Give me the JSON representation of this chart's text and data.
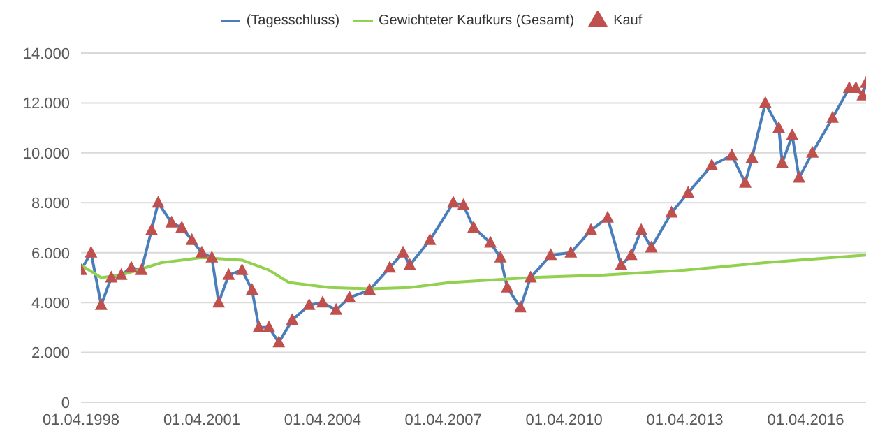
{
  "chart_data": {
    "type": "line",
    "legend": "top",
    "grid": "y",
    "xlim": [
      "1998-04-01",
      "2017-10-01"
    ],
    "xticks": [
      {
        "value": "1998-04-01",
        "label": "01.04.1998"
      },
      {
        "value": "2001-04-01",
        "label": "01.04.2001"
      },
      {
        "value": "2004-04-01",
        "label": "01.04.2004"
      },
      {
        "value": "2007-04-01",
        "label": "01.04.2007"
      },
      {
        "value": "2010-04-01",
        "label": "01.04.2010"
      },
      {
        "value": "2013-04-01",
        "label": "01.04.2013"
      },
      {
        "value": "2016-04-01",
        "label": "01.04.2016"
      }
    ],
    "ylim": [
      0,
      14000
    ],
    "yticks": [
      0,
      {
        "value": 2000,
        "label": "2.000"
      },
      {
        "value": 4000,
        "label": "4.000"
      },
      {
        "value": 6000,
        "label": "6.000"
      },
      {
        "value": 8000,
        "label": "8.000"
      },
      {
        "value": 10000,
        "label": "10.000"
      },
      {
        "value": 12000,
        "label": "12.000"
      },
      {
        "value": 14000,
        "label": "14.000"
      }
    ],
    "series": [
      {
        "name": "(Tagesschluss)",
        "marker": "none",
        "color": "#4a7ebb",
        "x": [
          "1998-04",
          "1998-07",
          "1998-10",
          "1999-01",
          "1999-04",
          "1999-07",
          "1999-10",
          "2000-01",
          "2000-03",
          "2000-07",
          "2000-10",
          "2001-01",
          "2001-04",
          "2001-07",
          "2001-09",
          "2001-12",
          "2002-04",
          "2002-07",
          "2002-09",
          "2002-12",
          "2003-03",
          "2003-07",
          "2003-12",
          "2004-04",
          "2004-08",
          "2004-12",
          "2005-06",
          "2005-12",
          "2006-04",
          "2006-06",
          "2006-12",
          "2007-07",
          "2007-10",
          "2008-01",
          "2008-06",
          "2008-09",
          "2008-11",
          "2009-03",
          "2009-06",
          "2009-12",
          "2010-06",
          "2010-12",
          "2011-05",
          "2011-09",
          "2011-12",
          "2012-03",
          "2012-06",
          "2012-12",
          "2013-05",
          "2013-12",
          "2014-06",
          "2014-10",
          "2014-12",
          "2015-04",
          "2015-08",
          "2015-09",
          "2015-12",
          "2016-02",
          "2016-06",
          "2016-12",
          "2017-05",
          "2017-07",
          "2017-09",
          "2017-10"
        ],
        "values": [
          5300,
          6000,
          3900,
          5000,
          5100,
          5400,
          5300,
          6900,
          8000,
          7200,
          7000,
          6500,
          6000,
          5800,
          4000,
          5100,
          5300,
          4500,
          3000,
          3000,
          2400,
          3300,
          3900,
          4000,
          3700,
          4200,
          4500,
          5400,
          6000,
          5500,
          6500,
          8000,
          7900,
          7000,
          6400,
          5800,
          4600,
          3800,
          5000,
          5900,
          6000,
          6900,
          7400,
          5500,
          5900,
          6900,
          6200,
          7600,
          8400,
          9500,
          9900,
          8800,
          9800,
          12000,
          11000,
          9600,
          10700,
          9000,
          10000,
          11400,
          12600,
          12600,
          12300,
          12800
        ]
      },
      {
        "name": "Kauf",
        "type": "scatter",
        "marker": "triangle",
        "color": "#c0504d",
        "x": [
          "1998-04",
          "1998-07",
          "1998-10",
          "1999-01",
          "1999-04",
          "1999-07",
          "1999-10",
          "2000-01",
          "2000-03",
          "2000-07",
          "2000-10",
          "2001-01",
          "2001-04",
          "2001-07",
          "2001-09",
          "2001-12",
          "2002-04",
          "2002-07",
          "2002-09",
          "2002-12",
          "2003-03",
          "2003-07",
          "2003-12",
          "2004-04",
          "2004-08",
          "2004-12",
          "2005-06",
          "2005-12",
          "2006-04",
          "2006-06",
          "2006-12",
          "2007-07",
          "2007-10",
          "2008-01",
          "2008-06",
          "2008-09",
          "2008-11",
          "2009-03",
          "2009-06",
          "2009-12",
          "2010-06",
          "2010-12",
          "2011-05",
          "2011-09",
          "2011-12",
          "2012-03",
          "2012-06",
          "2012-12",
          "2013-05",
          "2013-12",
          "2014-06",
          "2014-10",
          "2014-12",
          "2015-04",
          "2015-08",
          "2015-09",
          "2015-12",
          "2016-02",
          "2016-06",
          "2016-12",
          "2017-05",
          "2017-07",
          "2017-09",
          "2017-10"
        ],
        "values": [
          5300,
          6000,
          3900,
          5000,
          5100,
          5400,
          5300,
          6900,
          8000,
          7200,
          7000,
          6500,
          6000,
          5800,
          4000,
          5100,
          5300,
          4500,
          3000,
          3000,
          2400,
          3300,
          3900,
          4000,
          3700,
          4200,
          4500,
          5400,
          6000,
          5500,
          6500,
          8000,
          7900,
          7000,
          6400,
          5800,
          4600,
          3800,
          5000,
          5900,
          6000,
          6900,
          7400,
          5500,
          5900,
          6900,
          6200,
          7600,
          8400,
          9500,
          9900,
          8800,
          9800,
          12000,
          11000,
          9600,
          10700,
          9000,
          10000,
          11400,
          12600,
          12600,
          12300,
          12800
        ]
      },
      {
        "name": "Gewichteter Kaufkurs (Gesamt)",
        "marker": "none",
        "color": "#92d050",
        "x": [
          "1998-04",
          "1998-10",
          "1999-04",
          "2000-04",
          "2001-04",
          "2002-04",
          "2002-12",
          "2003-06",
          "2004-06",
          "2005-06",
          "2006-06",
          "2007-06",
          "2008-06",
          "2009-06",
          "2011-04",
          "2013-04",
          "2015-04",
          "2017-10"
        ],
        "values": [
          5500,
          5000,
          5100,
          5600,
          5800,
          5700,
          5300,
          4800,
          4600,
          4550,
          4600,
          4800,
          4900,
          5000,
          5100,
          5300,
          5600,
          5900
        ]
      }
    ]
  }
}
